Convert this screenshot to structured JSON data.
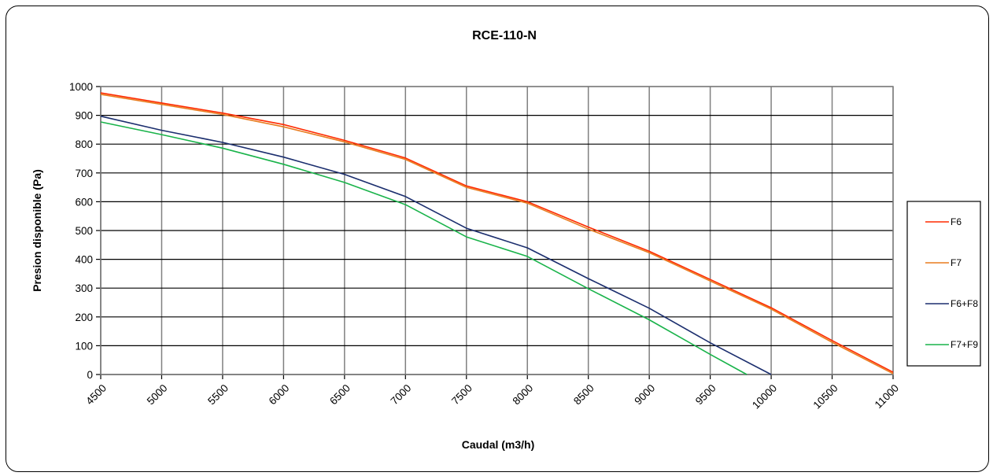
{
  "chart_data": {
    "type": "line",
    "title": "RCE-110-N",
    "xlabel": "Caudal (m3/h)",
    "ylabel": "Presion disponible (Pa)",
    "xlim": [
      4500,
      11000
    ],
    "ylim": [
      0,
      1000
    ],
    "x_ticks": [
      "4500",
      "5000",
      "5500",
      "6000",
      "6500",
      "7000",
      "7500",
      "8000",
      "8500",
      "9000",
      "9500",
      "10000",
      "10500",
      "11000"
    ],
    "y_ticks": [
      "0",
      "100",
      "200",
      "300",
      "400",
      "500",
      "600",
      "700",
      "800",
      "900",
      "1000"
    ],
    "grid": true,
    "legend_position": "right",
    "series": [
      {
        "name": "F6",
        "color": "#ff2a00",
        "points": [
          [
            4500,
            978
          ],
          [
            5000,
            943
          ],
          [
            5500,
            908
          ],
          [
            6000,
            868
          ],
          [
            6500,
            813
          ],
          [
            7000,
            752
          ],
          [
            7500,
            655
          ],
          [
            8000,
            600
          ],
          [
            8500,
            512
          ],
          [
            9000,
            428
          ],
          [
            9500,
            330
          ],
          [
            10000,
            232
          ],
          [
            10500,
            118
          ],
          [
            11000,
            8
          ]
        ]
      },
      {
        "name": "F7",
        "color": "#e87c1e",
        "points": [
          [
            4500,
            973
          ],
          [
            5000,
            938
          ],
          [
            5500,
            903
          ],
          [
            6000,
            860
          ],
          [
            6500,
            808
          ],
          [
            7000,
            747
          ],
          [
            7500,
            650
          ],
          [
            8000,
            595
          ],
          [
            8500,
            505
          ],
          [
            9000,
            423
          ],
          [
            9500,
            325
          ],
          [
            10000,
            227
          ],
          [
            10500,
            112
          ],
          [
            11000,
            3
          ]
        ]
      },
      {
        "name": "F6+F8",
        "color": "#1b2e6e",
        "points": [
          [
            4500,
            897
          ],
          [
            5000,
            848
          ],
          [
            5500,
            806
          ],
          [
            6000,
            755
          ],
          [
            6500,
            695
          ],
          [
            7000,
            618
          ],
          [
            7500,
            508
          ],
          [
            8000,
            440
          ],
          [
            8500,
            333
          ],
          [
            9000,
            230
          ],
          [
            9500,
            110
          ],
          [
            10000,
            0
          ]
        ]
      },
      {
        "name": "F7+F9",
        "color": "#19b34a",
        "points": [
          [
            4500,
            877
          ],
          [
            5000,
            833
          ],
          [
            5500,
            786
          ],
          [
            6000,
            730
          ],
          [
            6500,
            667
          ],
          [
            7000,
            590
          ],
          [
            7500,
            478
          ],
          [
            8000,
            410
          ],
          [
            8500,
            298
          ],
          [
            9000,
            190
          ],
          [
            9500,
            70
          ],
          [
            9800,
            0
          ]
        ]
      }
    ]
  }
}
